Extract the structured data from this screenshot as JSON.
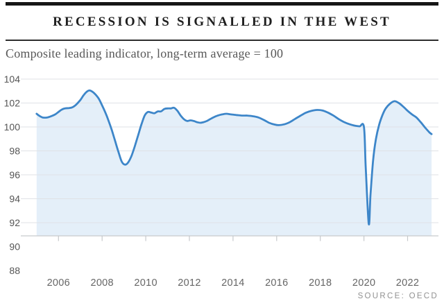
{
  "header": {
    "title": "RECESSION IS SIGNALLED IN THE WEST",
    "subtitle": "Composite leading indicator, long-term average = 100"
  },
  "footer": {
    "source": "SOURCE: OECD"
  },
  "colors": {
    "line": "#3d86c9",
    "area_fill": "#e4eff9",
    "gridline": "#dfe2e6",
    "axis": "#c6c9cc",
    "y_label": "#555555",
    "x_label": "#666666",
    "title": "#1f1f1f",
    "subtitle": "#575757",
    "source": "#919191",
    "top_rule": "#161616",
    "title_rule": "#2d2d2d"
  },
  "chart_data": {
    "type": "area",
    "title": "RECESSION IS SIGNALLED IN THE WEST",
    "subtitle": "Composite leading indicator, long-term average = 100",
    "source": "SOURCE: OECD",
    "xlabel": "",
    "ylabel": "",
    "grid": "horizontal",
    "legend": "none",
    "x_axis": {
      "ticks": [
        2006,
        2008,
        2010,
        2012,
        2014,
        2016,
        2018,
        2020,
        2022
      ],
      "range": [
        2005.0,
        2023.4
      ]
    },
    "y_axis": {
      "tick_labels": [
        104,
        102,
        100,
        98,
        96,
        94,
        92,
        90,
        88
      ],
      "gridline_values": [
        104,
        102,
        100,
        98,
        96,
        94,
        92
      ],
      "baseline_value": 90.9,
      "long_term_average": 100
    },
    "series": [
      {
        "name": "Composite leading indicator",
        "color": "#3d86c9",
        "fill_color": "#e4eff9",
        "points": [
          [
            2005.0,
            101.1
          ],
          [
            2005.15,
            100.9
          ],
          [
            2005.3,
            100.78
          ],
          [
            2005.5,
            100.8
          ],
          [
            2005.7,
            100.92
          ],
          [
            2005.85,
            101.05
          ],
          [
            2006.0,
            101.25
          ],
          [
            2006.15,
            101.45
          ],
          [
            2006.3,
            101.55
          ],
          [
            2006.5,
            101.58
          ],
          [
            2006.65,
            101.65
          ],
          [
            2006.8,
            101.85
          ],
          [
            2007.0,
            102.25
          ],
          [
            2007.15,
            102.65
          ],
          [
            2007.3,
            102.95
          ],
          [
            2007.42,
            103.05
          ],
          [
            2007.55,
            102.95
          ],
          [
            2007.7,
            102.7
          ],
          [
            2007.85,
            102.35
          ],
          [
            2008.0,
            101.8
          ],
          [
            2008.15,
            101.2
          ],
          [
            2008.3,
            100.5
          ],
          [
            2008.45,
            99.7
          ],
          [
            2008.6,
            98.8
          ],
          [
            2008.75,
            97.9
          ],
          [
            2008.9,
            97.1
          ],
          [
            2009.05,
            96.85
          ],
          [
            2009.2,
            97.05
          ],
          [
            2009.35,
            97.6
          ],
          [
            2009.5,
            98.4
          ],
          [
            2009.65,
            99.3
          ],
          [
            2009.8,
            100.2
          ],
          [
            2009.95,
            100.95
          ],
          [
            2010.1,
            101.25
          ],
          [
            2010.25,
            101.2
          ],
          [
            2010.4,
            101.15
          ],
          [
            2010.55,
            101.3
          ],
          [
            2010.7,
            101.3
          ],
          [
            2010.85,
            101.5
          ],
          [
            2011.0,
            101.55
          ],
          [
            2011.15,
            101.55
          ],
          [
            2011.3,
            101.6
          ],
          [
            2011.45,
            101.35
          ],
          [
            2011.6,
            100.95
          ],
          [
            2011.75,
            100.65
          ],
          [
            2011.9,
            100.5
          ],
          [
            2012.05,
            100.55
          ],
          [
            2012.2,
            100.5
          ],
          [
            2012.35,
            100.4
          ],
          [
            2012.5,
            100.35
          ],
          [
            2012.65,
            100.4
          ],
          [
            2012.8,
            100.5
          ],
          [
            2012.95,
            100.65
          ],
          [
            2013.1,
            100.8
          ],
          [
            2013.3,
            100.95
          ],
          [
            2013.5,
            101.05
          ],
          [
            2013.7,
            101.1
          ],
          [
            2013.9,
            101.05
          ],
          [
            2014.15,
            101.0
          ],
          [
            2014.4,
            100.95
          ],
          [
            2014.65,
            100.95
          ],
          [
            2014.9,
            100.9
          ],
          [
            2015.15,
            100.8
          ],
          [
            2015.4,
            100.6
          ],
          [
            2015.65,
            100.35
          ],
          [
            2015.9,
            100.2
          ],
          [
            2016.1,
            100.15
          ],
          [
            2016.35,
            100.22
          ],
          [
            2016.6,
            100.4
          ],
          [
            2016.85,
            100.68
          ],
          [
            2017.1,
            100.95
          ],
          [
            2017.35,
            101.2
          ],
          [
            2017.6,
            101.35
          ],
          [
            2017.85,
            101.42
          ],
          [
            2018.1,
            101.38
          ],
          [
            2018.35,
            101.2
          ],
          [
            2018.6,
            100.95
          ],
          [
            2018.85,
            100.65
          ],
          [
            2019.1,
            100.4
          ],
          [
            2019.35,
            100.22
          ],
          [
            2019.6,
            100.1
          ],
          [
            2019.8,
            100.05
          ],
          [
            2020.0,
            100.0
          ],
          [
            2020.08,
            96.7
          ],
          [
            2020.22,
            91.9
          ],
          [
            2020.3,
            94.3
          ],
          [
            2020.42,
            97.2
          ],
          [
            2020.55,
            99.0
          ],
          [
            2020.7,
            100.2
          ],
          [
            2020.85,
            101.0
          ],
          [
            2021.0,
            101.55
          ],
          [
            2021.2,
            101.95
          ],
          [
            2021.4,
            102.15
          ],
          [
            2021.6,
            102.0
          ],
          [
            2021.8,
            101.7
          ],
          [
            2022.0,
            101.35
          ],
          [
            2022.2,
            101.05
          ],
          [
            2022.4,
            100.8
          ],
          [
            2022.6,
            100.4
          ],
          [
            2022.8,
            99.95
          ],
          [
            2023.0,
            99.55
          ],
          [
            2023.1,
            99.4
          ]
        ]
      }
    ]
  }
}
